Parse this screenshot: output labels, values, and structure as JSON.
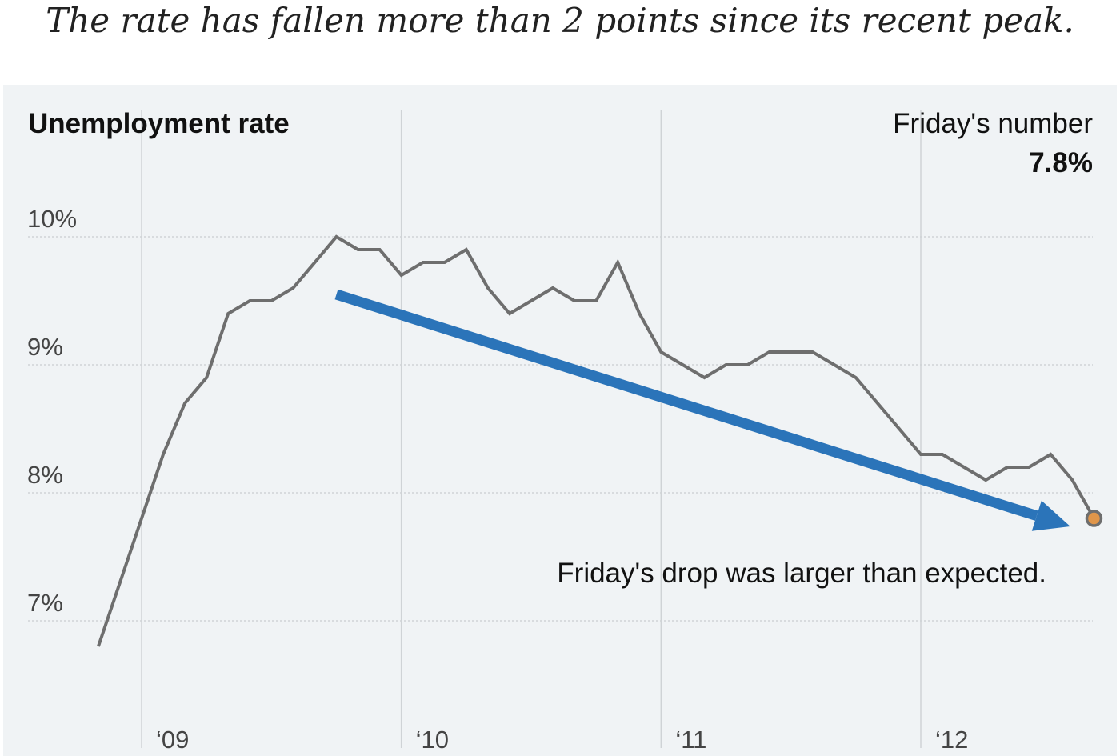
{
  "headline": "The rate has fallen more than 2 points since its recent peak.",
  "colors": {
    "line": "#6e6e6e",
    "arrow": "#2b74b9",
    "latest_dot": "#e0964a",
    "grid": "#cfd3d6",
    "panel": "#f0f3f5"
  },
  "chart_data": {
    "type": "line",
    "title": "Unemployment rate",
    "latest_label": "Friday's number",
    "latest_value_label": "7.8%",
    "annotation": "Friday's drop was larger than expected.",
    "ylim": [
      6.6,
      10.3
    ],
    "yticks": [
      {
        "value": 10,
        "label": "10%"
      },
      {
        "value": 9,
        "label": "9%"
      },
      {
        "value": 8,
        "label": "8%"
      },
      {
        "value": 7,
        "label": "7%"
      }
    ],
    "xlim": [
      2008.75,
      2012.75
    ],
    "xticks": [
      {
        "value": 2009,
        "label": "‘09"
      },
      {
        "value": 2010,
        "label": "‘10"
      },
      {
        "value": 2011,
        "label": "‘11"
      },
      {
        "value": 2012,
        "label": "‘12"
      }
    ],
    "series": [
      {
        "name": "Unemployment rate",
        "x": [
          2008.8333,
          2008.9167,
          2009.0,
          2009.0833,
          2009.1667,
          2009.25,
          2009.3333,
          2009.4167,
          2009.5,
          2009.5833,
          2009.6667,
          2009.75,
          2009.8333,
          2009.9167,
          2010.0,
          2010.0833,
          2010.1667,
          2010.25,
          2010.3333,
          2010.4167,
          2010.5,
          2010.5833,
          2010.6667,
          2010.75,
          2010.8333,
          2010.9167,
          2011.0,
          2011.0833,
          2011.1667,
          2011.25,
          2011.3333,
          2011.4167,
          2011.5,
          2011.5833,
          2011.6667,
          2011.75,
          2011.8333,
          2011.9167,
          2012.0,
          2012.0833,
          2012.1667,
          2012.25,
          2012.3333,
          2012.4167,
          2012.5,
          2012.5833,
          2012.6667
        ],
        "values": [
          6.8,
          7.3,
          7.8,
          8.3,
          8.7,
          8.9,
          9.4,
          9.5,
          9.5,
          9.6,
          9.8,
          10.0,
          9.9,
          9.9,
          9.7,
          9.8,
          9.8,
          9.9,
          9.6,
          9.4,
          9.5,
          9.6,
          9.5,
          9.5,
          9.8,
          9.4,
          9.1,
          9.0,
          8.9,
          9.0,
          9.0,
          9.1,
          9.1,
          9.1,
          9.0,
          8.9,
          8.7,
          8.5,
          8.3,
          8.3,
          8.2,
          8.1,
          8.2,
          8.2,
          8.3,
          8.1,
          7.8
        ]
      }
    ],
    "trend_arrow": {
      "from": {
        "x": 2009.75,
        "y": 9.55
      },
      "to": {
        "x": 2012.6,
        "y": 7.8
      }
    }
  }
}
